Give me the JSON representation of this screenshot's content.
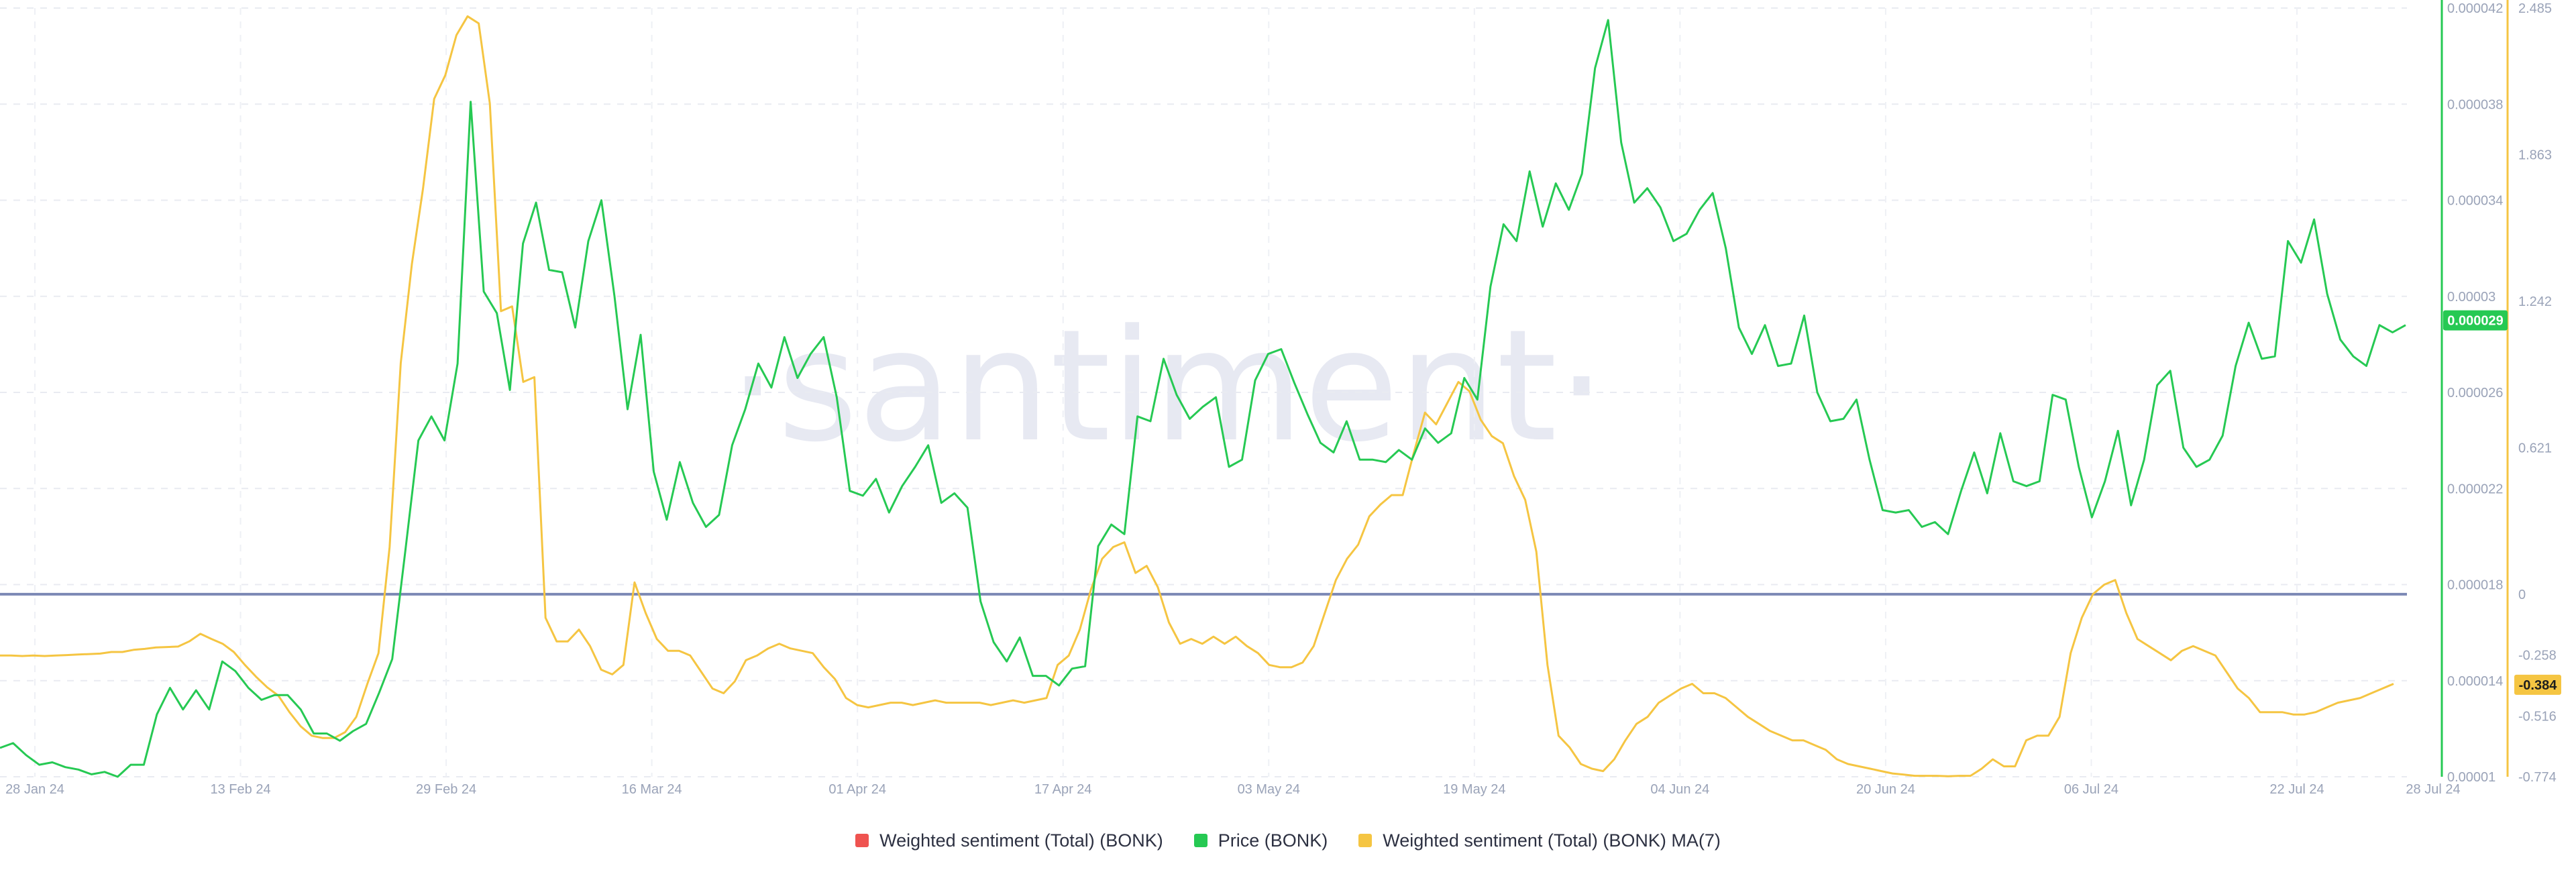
{
  "chart_data": {
    "type": "line",
    "watermark": "·santiment·",
    "x_ticks": [
      "28 Jan 24",
      "13 Feb 24",
      "29 Feb 24",
      "16 Mar 24",
      "01 Apr 24",
      "17 Apr 24",
      "03 May 24",
      "19 May 24",
      "04 Jun 24",
      "20 Jun 24",
      "06 Jul 24",
      "22 Jul 24",
      "28 Jul 24"
    ],
    "price_axis": {
      "ticks": [
        "0.000042",
        "0.000038",
        "0.000034",
        "0.00003",
        "0.000026",
        "0.000022",
        "0.000018",
        "0.000014",
        "0.00001"
      ],
      "range": [
        1e-05,
        4.2e-05
      ],
      "current_label": "0.000029",
      "current_value": 2.9e-05,
      "color": "#26c953"
    },
    "sentiment_axis": {
      "ticks": [
        "2.485",
        "1.863",
        "1.242",
        "0.621",
        "0",
        "-0.258",
        "-0.516",
        "-0.774"
      ],
      "current_label": "-0.384",
      "current_value": -0.384,
      "color": "#f5c542"
    },
    "zero_line_color": "#7b88b5",
    "series": [
      {
        "name": "Price (BONK)",
        "color": "#26c953",
        "values": [
          1.12e-05,
          1.14e-05,
          1.09e-05,
          1.05e-05,
          1.06e-05,
          1.04e-05,
          1.03e-05,
          1.01e-05,
          1.02e-05,
          1e-05,
          1.05e-05,
          1.05e-05,
          1.26e-05,
          1.37e-05,
          1.28e-05,
          1.36e-05,
          1.28e-05,
          1.48e-05,
          1.44e-05,
          1.37e-05,
          1.32e-05,
          1.34e-05,
          1.34e-05,
          1.28e-05,
          1.18e-05,
          1.18e-05,
          1.15e-05,
          1.19e-05,
          1.22e-05,
          1.35e-05,
          1.49e-05,
          1.94e-05,
          2.4e-05,
          2.5e-05,
          2.4e-05,
          2.72e-05,
          3.81e-05,
          3.02e-05,
          2.93e-05,
          2.61e-05,
          3.22e-05,
          3.39e-05,
          3.11e-05,
          3.1e-05,
          2.87e-05,
          3.23e-05,
          3.4e-05,
          3e-05,
          2.53e-05,
          2.84e-05,
          2.27e-05,
          2.07e-05,
          2.31e-05,
          2.14e-05,
          2.04e-05,
          2.09e-05,
          2.38e-05,
          2.53e-05,
          2.72e-05,
          2.62e-05,
          2.83e-05,
          2.66e-05,
          2.76e-05,
          2.83e-05,
          2.58e-05,
          2.19e-05,
          2.17e-05,
          2.24e-05,
          2.1e-05,
          2.21e-05,
          2.29e-05,
          2.38e-05,
          2.14e-05,
          2.18e-05,
          2.12e-05,
          1.73e-05,
          1.56e-05,
          1.48e-05,
          1.58e-05,
          1.42e-05,
          1.42e-05,
          1.38e-05,
          1.45e-05,
          1.46e-05,
          1.96e-05,
          2.05e-05,
          2.01e-05,
          2.5e-05,
          2.48e-05,
          2.74e-05,
          2.59e-05,
          2.49e-05,
          2.54e-05,
          2.58e-05,
          2.29e-05,
          2.32e-05,
          2.65e-05,
          2.76e-05,
          2.78e-05,
          2.64e-05,
          2.51e-05,
          2.39e-05,
          2.35e-05,
          2.48e-05,
          2.32e-05,
          2.32e-05,
          2.31e-05,
          2.36e-05,
          2.32e-05,
          2.45e-05,
          2.39e-05,
          2.43e-05,
          2.66e-05,
          2.57e-05,
          3.04e-05,
          3.3e-05,
          3.23e-05,
          3.52e-05,
          3.29e-05,
          3.47e-05,
          3.36e-05,
          3.51e-05,
          3.95e-05,
          4.15e-05,
          3.64e-05,
          3.39e-05,
          3.45e-05,
          3.37e-05,
          3.23e-05,
          3.26e-05,
          3.36e-05,
          3.43e-05,
          3.2e-05,
          2.87e-05,
          2.76e-05,
          2.88e-05,
          2.71e-05,
          2.72e-05,
          2.92e-05,
          2.6e-05,
          2.48e-05,
          2.49e-05,
          2.57e-05,
          2.32e-05,
          2.11e-05,
          2.1e-05,
          2.11e-05,
          2.04e-05,
          2.06e-05,
          2.01e-05,
          2.19e-05,
          2.35e-05,
          2.18e-05,
          2.43e-05,
          2.23e-05,
          2.21e-05,
          2.23e-05,
          2.59e-05,
          2.57e-05,
          2.29e-05,
          2.08e-05,
          2.23e-05,
          2.44e-05,
          2.13e-05,
          2.32e-05,
          2.63e-05,
          2.69e-05,
          2.37e-05,
          2.29e-05,
          2.32e-05,
          2.42e-05,
          2.71e-05,
          2.89e-05,
          2.74e-05,
          2.75e-05,
          3.23e-05,
          3.14e-05,
          3.32e-05,
          3.01e-05,
          2.82e-05,
          2.75e-05,
          2.71e-05,
          2.88e-05,
          2.85e-05,
          2.88e-05
        ]
      },
      {
        "name": "Weighted sentiment (Total) (BONK) MA(7)",
        "color": "#f5c542",
        "values": [
          -0.26,
          -0.26,
          -0.262,
          -0.26,
          -0.262,
          -0.26,
          -0.258,
          -0.256,
          -0.254,
          -0.252,
          -0.245,
          -0.245,
          -0.236,
          -0.232,
          -0.226,
          -0.224,
          -0.222,
          -0.2,
          -0.168,
          -0.19,
          -0.21,
          -0.245,
          -0.3,
          -0.35,
          -0.395,
          -0.43,
          -0.5,
          -0.56,
          -0.6,
          -0.61,
          -0.61,
          -0.585,
          -0.52,
          -0.38,
          -0.25,
          0.2,
          0.98,
          1.4,
          1.72,
          2.1,
          2.2,
          2.37,
          2.45,
          2.42,
          2.08,
          1.2,
          1.22,
          0.9,
          0.92,
          -0.1,
          -0.2,
          -0.2,
          -0.15,
          -0.22,
          -0.32,
          -0.34,
          -0.3,
          0.05,
          -0.08,
          -0.19,
          -0.24,
          -0.24,
          -0.26,
          -0.33,
          -0.4,
          -0.42,
          -0.37,
          -0.28,
          -0.26,
          -0.23,
          -0.21,
          -0.23,
          -0.24,
          -0.25,
          -0.31,
          -0.36,
          -0.44,
          -0.47,
          -0.48,
          -0.47,
          -0.46,
          -0.46,
          -0.47,
          -0.46,
          -0.45,
          -0.46,
          -0.46,
          -0.46,
          -0.46,
          -0.47,
          -0.46,
          -0.45,
          -0.46,
          -0.45,
          -0.44,
          -0.3,
          -0.26,
          -0.15,
          0.02,
          0.15,
          0.2,
          0.22,
          0.09,
          0.12,
          0.03,
          -0.12,
          -0.21,
          -0.19,
          -0.21,
          -0.18,
          -0.21,
          -0.18,
          -0.22,
          -0.25,
          -0.3,
          -0.31,
          -0.31,
          -0.29,
          -0.22,
          -0.08,
          0.06,
          0.15,
          0.21,
          0.33,
          0.38,
          0.42,
          0.42,
          0.6,
          0.77,
          0.72,
          0.81,
          0.9,
          0.86,
          0.74,
          0.67,
          0.64,
          0.5,
          0.4,
          0.18,
          -0.3,
          -0.6,
          -0.65,
          -0.72,
          -0.74,
          -0.75,
          -0.7,
          -0.62,
          -0.55,
          -0.52,
          -0.46,
          -0.43,
          -0.4,
          -0.38,
          -0.42,
          -0.42,
          -0.44,
          -0.48,
          -0.52,
          -0.55,
          -0.58,
          -0.6,
          -0.62,
          -0.62,
          -0.64,
          -0.66,
          -0.7,
          -0.72,
          -0.73,
          -0.74,
          -0.75,
          -0.76,
          -0.765,
          -0.77,
          -0.77,
          -0.77,
          -0.772,
          -0.77,
          -0.77,
          -0.74,
          -0.7,
          -0.73,
          -0.73,
          -0.62,
          -0.6,
          -0.6,
          -0.52,
          -0.25,
          -0.1,
          0.0,
          0.04,
          0.06,
          -0.08,
          -0.19,
          -0.22,
          -0.25,
          -0.28,
          -0.24,
          -0.22,
          -0.24,
          -0.26,
          -0.33,
          -0.4,
          -0.44,
          -0.5,
          -0.5,
          -0.5,
          -0.51,
          -0.51,
          -0.5,
          -0.48,
          -0.46,
          -0.45,
          -0.44,
          -0.42,
          -0.4,
          -0.38
        ]
      }
    ]
  },
  "legend": [
    {
      "label": "Weighted sentiment (Total) (BONK)",
      "color": "#ef5350"
    },
    {
      "label": "Price (BONK)",
      "color": "#26c953"
    },
    {
      "label": "Weighted sentiment (Total) (BONK) MA(7)",
      "color": "#f5c542"
    }
  ]
}
